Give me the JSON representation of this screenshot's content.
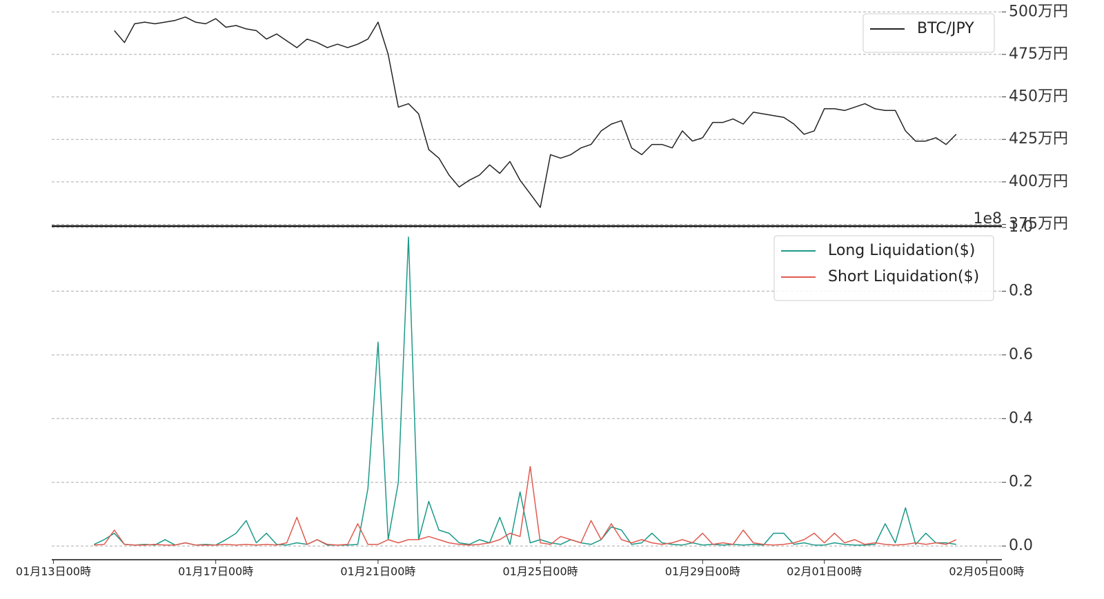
{
  "chart_data": [
    {
      "type": "line",
      "x": [
        "01-14T00",
        "01-14T06",
        "01-14T12",
        "01-14T18",
        "01-15T00",
        "01-15T06",
        "01-15T12",
        "01-15T18",
        "01-16T00",
        "01-16T06",
        "01-16T12",
        "01-16T18",
        "01-17T00",
        "01-17T06",
        "01-17T12",
        "01-17T18",
        "01-18T00",
        "01-18T06",
        "01-18T12",
        "01-18T18",
        "01-19T00",
        "01-19T06",
        "01-19T12",
        "01-19T18",
        "01-20T00",
        "01-20T06",
        "01-20T12",
        "01-20T18",
        "01-21T00",
        "01-21T06",
        "01-21T12",
        "01-21T18",
        "01-22T00",
        "01-22T06",
        "01-22T12",
        "01-22T18",
        "01-23T00",
        "01-23T06",
        "01-23T12",
        "01-23T18",
        "01-24T00",
        "01-24T06",
        "01-24T12",
        "01-24T18",
        "01-25T00",
        "01-25T06",
        "01-25T12",
        "01-25T18",
        "01-26T00",
        "01-26T06",
        "01-26T12",
        "01-26T18",
        "01-27T00",
        "01-27T06",
        "01-27T12",
        "01-27T18",
        "01-28T00",
        "01-28T06",
        "01-28T12",
        "01-28T18",
        "01-29T00",
        "01-29T06",
        "01-29T12",
        "01-29T18",
        "01-30T00",
        "01-30T06",
        "01-30T12",
        "01-30T18",
        "01-31T00",
        "01-31T06",
        "01-31T12",
        "01-31T18",
        "02-01T00",
        "02-01T06",
        "02-01T12",
        "02-01T18",
        "02-02T00",
        "02-02T06",
        "02-02T12",
        "02-02T18",
        "02-03T00",
        "02-03T06",
        "02-03T12",
        "02-03T18",
        "02-04T00",
        "02-04T06"
      ],
      "series": [
        {
          "name": "BTC/JPY",
          "color": "#222222",
          "values": [
            null,
            null,
            489,
            482,
            493,
            494,
            493,
            494,
            495,
            497,
            494,
            493,
            496,
            491,
            492,
            490,
            489,
            484,
            487,
            483,
            479,
            484,
            482,
            479,
            481,
            479,
            481,
            484,
            494,
            475,
            444,
            446,
            440,
            419,
            414,
            404,
            397,
            401,
            404,
            410,
            405,
            412,
            401,
            393,
            385,
            416,
            414,
            416,
            420,
            422,
            430,
            434,
            436,
            420,
            416,
            422,
            422,
            420,
            430,
            424,
            426,
            435,
            435,
            437,
            434,
            441,
            440,
            439,
            438,
            434,
            428,
            430,
            443,
            443,
            442,
            444,
            446,
            443,
            442,
            442,
            430,
            424,
            424,
            426,
            422,
            428
          ]
        }
      ],
      "xlim": [
        "01-12T23",
        "02-05T09"
      ],
      "ylim": [
        374,
        507
      ],
      "yticks": [
        {
          "value": 375,
          "label": "375万円"
        },
        {
          "value": 400,
          "label": "400万円"
        },
        {
          "value": 425,
          "label": "425万円"
        },
        {
          "value": 450,
          "label": "450万円"
        },
        {
          "value": 475,
          "label": "475万円"
        },
        {
          "value": 500,
          "label": "500万円"
        }
      ],
      "grid": true,
      "legend": "upper right"
    },
    {
      "type": "line",
      "x": [
        "01-14T00",
        "01-14T06",
        "01-14T12",
        "01-14T18",
        "01-15T00",
        "01-15T06",
        "01-15T12",
        "01-15T18",
        "01-16T00",
        "01-16T06",
        "01-16T12",
        "01-16T18",
        "01-17T00",
        "01-17T06",
        "01-17T12",
        "01-17T18",
        "01-18T00",
        "01-18T06",
        "01-18T12",
        "01-18T18",
        "01-19T00",
        "01-19T06",
        "01-19T12",
        "01-19T18",
        "01-20T00",
        "01-20T06",
        "01-20T12",
        "01-20T18",
        "01-21T00",
        "01-21T06",
        "01-21T12",
        "01-21T18",
        "01-22T00",
        "01-22T06",
        "01-22T12",
        "01-22T18",
        "01-23T00",
        "01-23T06",
        "01-23T12",
        "01-23T18",
        "01-24T00",
        "01-24T06",
        "01-24T12",
        "01-24T18",
        "01-25T00",
        "01-25T06",
        "01-25T12",
        "01-25T18",
        "01-26T00",
        "01-26T06",
        "01-26T12",
        "01-26T18",
        "01-27T00",
        "01-27T06",
        "01-27T12",
        "01-27T18",
        "01-28T00",
        "01-28T06",
        "01-28T12",
        "01-28T18",
        "01-29T00",
        "01-29T06",
        "01-29T12",
        "01-29T18",
        "01-30T00",
        "01-30T06",
        "01-30T12",
        "01-30T18",
        "01-31T00",
        "01-31T06",
        "01-31T12",
        "01-31T18",
        "02-01T00",
        "02-01T06",
        "02-01T12",
        "02-01T18",
        "02-02T00",
        "02-02T06",
        "02-02T12",
        "02-02T18",
        "02-03T00",
        "02-03T06",
        "02-03T12",
        "02-03T18",
        "02-04T00",
        "02-04T06"
      ],
      "series": [
        {
          "name": "Long Liquidation($)",
          "color": "#1a9988",
          "values": [
            0.005,
            0.02,
            0.04,
            0.005,
            0.003,
            0.005,
            0.003,
            0.02,
            0.003,
            0.01,
            0.003,
            0.005,
            0.003,
            0.02,
            0.04,
            0.08,
            0.01,
            0.04,
            0.005,
            0.003,
            0.01,
            0.005,
            0.02,
            0.003,
            0.003,
            0.003,
            0.005,
            0.18,
            0.64,
            0.02,
            0.2,
            0.97,
            0.02,
            0.14,
            0.05,
            0.04,
            0.01,
            0.005,
            0.02,
            0.01,
            0.09,
            0.005,
            0.17,
            0.01,
            0.02,
            0.01,
            0.005,
            0.02,
            0.01,
            0.005,
            0.02,
            0.06,
            0.05,
            0.005,
            0.01,
            0.04,
            0.01,
            0.005,
            0.003,
            0.01,
            0.003,
            0.005,
            0.003,
            0.005,
            0.003,
            0.005,
            0.003,
            0.04,
            0.04,
            0.005,
            0.01,
            0.003,
            0.003,
            0.01,
            0.005,
            0.003,
            0.003,
            0.005,
            0.07,
            0.01,
            0.12,
            0.005,
            0.04,
            0.01,
            0.01,
            0.005
          ]
        },
        {
          "name": "Short Liquidation($)",
          "color": "#e05a4f",
          "values": [
            0.003,
            0.005,
            0.05,
            0.005,
            0.003,
            0.003,
            0.005,
            0.003,
            0.003,
            0.01,
            0.003,
            0.003,
            0.003,
            0.005,
            0.003,
            0.005,
            0.003,
            0.005,
            0.003,
            0.01,
            0.09,
            0.005,
            0.02,
            0.005,
            0.003,
            0.005,
            0.07,
            0.005,
            0.005,
            0.02,
            0.01,
            0.02,
            0.02,
            0.03,
            0.02,
            0.01,
            0.005,
            0.003,
            0.005,
            0.01,
            0.02,
            0.04,
            0.03,
            0.25,
            0.01,
            0.005,
            0.03,
            0.02,
            0.01,
            0.08,
            0.02,
            0.07,
            0.02,
            0.01,
            0.02,
            0.01,
            0.005,
            0.01,
            0.02,
            0.01,
            0.04,
            0.005,
            0.01,
            0.005,
            0.05,
            0.01,
            0.005,
            0.003,
            0.005,
            0.01,
            0.02,
            0.04,
            0.01,
            0.04,
            0.01,
            0.02,
            0.005,
            0.01,
            0.005,
            0.003,
            0.005,
            0.01,
            0.005,
            0.01,
            0.005,
            0.02
          ]
        }
      ],
      "xlim": [
        "01-12T23",
        "02-05T09"
      ],
      "xticks": [
        {
          "value": "01-13T00",
          "label": "01月13日00時"
        },
        {
          "value": "01-17T00",
          "label": "01月17日00時"
        },
        {
          "value": "01-21T00",
          "label": "01月21日00時"
        },
        {
          "value": "01-25T00",
          "label": "01月25日00時"
        },
        {
          "value": "01-29T00",
          "label": "01月29日00時"
        },
        {
          "value": "02-01T00",
          "label": "02月01日00時"
        },
        {
          "value": "02-05T00",
          "label": "02月05日00時"
        }
      ],
      "ylim": [
        -0.043,
        1
      ],
      "yticks": [
        {
          "value": 0,
          "label": "0.0"
        },
        {
          "value": 0.2,
          "label": "0.2"
        },
        {
          "value": 0.4,
          "label": "0.4"
        },
        {
          "value": 0.6,
          "label": "0.6"
        },
        {
          "value": 0.8,
          "label": "0.8"
        },
        {
          "value": 1,
          "label": "1.0"
        }
      ],
      "offset_text": "1e8",
      "grid": true,
      "legend": "upper right"
    }
  ]
}
